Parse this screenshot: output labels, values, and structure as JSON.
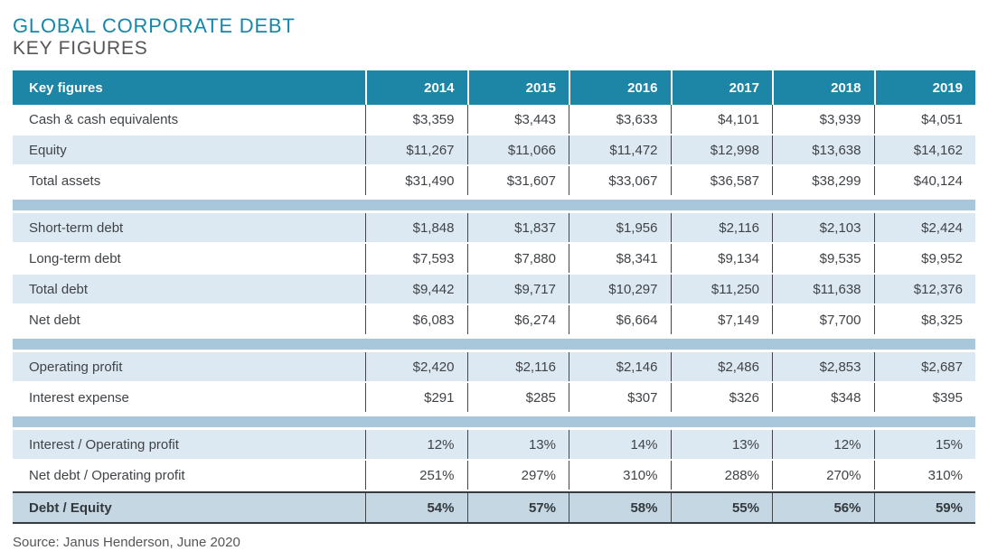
{
  "page": {
    "title": "GLOBAL CORPORATE DEBT",
    "subtitle": "KEY FIGURES",
    "source": "Source: Janus Henderson, June 2020"
  },
  "colors": {
    "title_teal": "#1787a9",
    "subtitle_gray": "#54565a",
    "header_teal": "#1d86a7",
    "row_alt_blue": "#dde9f2",
    "separator_blue": "#a8c7da",
    "footer_row_blue": "#c4d7e3",
    "body_text": "#3f4347",
    "divider_dark": "#43474b"
  },
  "chart_data": {
    "type": "table",
    "title": "GLOBAL CORPORATE DEBT",
    "subtitle": "KEY FIGURES",
    "source": "Source: Janus Henderson, June 2020",
    "columns": [
      "Key figures",
      "2014",
      "2015",
      "2016",
      "2017",
      "2018",
      "2019"
    ],
    "groups": [
      [
        [
          "Cash & cash equivalents",
          "$3,359",
          "$3,443",
          "$3,633",
          "$4,101",
          "$3,939",
          "$4,051"
        ],
        [
          "Equity",
          "$11,267",
          "$11,066",
          "$11,472",
          "$12,998",
          "$13,638",
          "$14,162"
        ],
        [
          "Total assets",
          "$31,490",
          "$31,607",
          "$33,067",
          "$36,587",
          "$38,299",
          "$40,124"
        ]
      ],
      [
        [
          "Short-term debt",
          "$1,848",
          "$1,837",
          "$1,956",
          "$2,116",
          "$2,103",
          "$2,424"
        ],
        [
          "Long-term debt",
          "$7,593",
          "$7,880",
          "$8,341",
          "$9,134",
          "$9,535",
          "$9,952"
        ],
        [
          "Total debt",
          "$9,442",
          "$9,717",
          "$10,297",
          "$11,250",
          "$11,638",
          "$12,376"
        ],
        [
          "Net debt",
          "$6,083",
          "$6,274",
          "$6,664",
          "$7,149",
          "$7,700",
          "$8,325"
        ]
      ],
      [
        [
          "Operating profit",
          "$2,420",
          "$2,116",
          "$2,146",
          "$2,486",
          "$2,853",
          "$2,687"
        ],
        [
          "Interest expense",
          "$291",
          "$285",
          "$307",
          "$326",
          "$348",
          "$395"
        ]
      ],
      [
        [
          "Interest / Operating profit",
          "12%",
          "13%",
          "14%",
          "13%",
          "12%",
          "15%"
        ],
        [
          "Net debt / Operating profit",
          "251%",
          "297%",
          "310%",
          "288%",
          "270%",
          "310%"
        ]
      ]
    ],
    "footer_row": [
      "Debt / Equity",
      "54%",
      "57%",
      "58%",
      "55%",
      "56%",
      "59%"
    ]
  }
}
